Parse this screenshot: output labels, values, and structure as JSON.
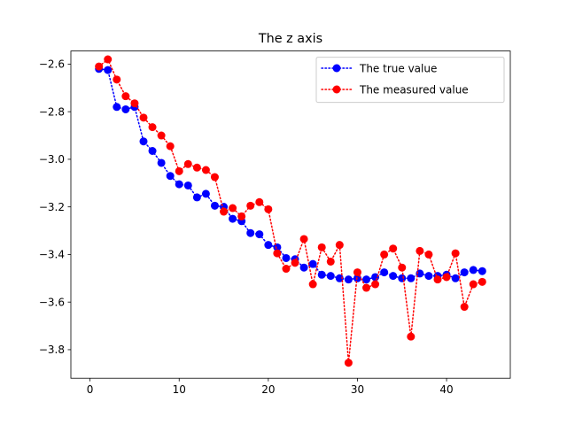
{
  "chart_data": {
    "type": "line",
    "title": "The z axis",
    "xlabel": "",
    "ylabel": "",
    "xlim": [
      -2.15,
      47.15
    ],
    "ylim": [
      -3.92,
      -2.545
    ],
    "xticks": [
      0,
      10,
      20,
      30,
      40
    ],
    "yticks": [
      -3.8,
      -3.6,
      -3.4,
      -3.2,
      -3.0,
      -2.8,
      -2.6
    ],
    "ytick_labels": [
      "−3.8",
      "−3.6",
      "−3.4",
      "−3.2",
      "−3.0",
      "−2.8",
      "−2.6"
    ],
    "grid": false,
    "legend_position": "top-right",
    "x": [
      1,
      2,
      3,
      4,
      5,
      6,
      7,
      8,
      9,
      10,
      11,
      12,
      13,
      14,
      15,
      16,
      17,
      18,
      19,
      20,
      21,
      22,
      23,
      24,
      25,
      26,
      27,
      28,
      29,
      30,
      31,
      32,
      33,
      34,
      35,
      36,
      37,
      38,
      39,
      40,
      41,
      42,
      43,
      44
    ],
    "series": [
      {
        "name": "The true value",
        "color": "#0000ff",
        "style": "dotted-line-circle-markers",
        "values": [
          -2.62,
          -2.625,
          -2.78,
          -2.79,
          -2.78,
          -2.925,
          -2.965,
          -3.015,
          -3.07,
          -3.105,
          -3.11,
          -3.16,
          -3.145,
          -3.195,
          -3.2,
          -3.25,
          -3.26,
          -3.31,
          -3.315,
          -3.36,
          -3.37,
          -3.415,
          -3.42,
          -3.455,
          -3.44,
          -3.485,
          -3.49,
          -3.5,
          -3.505,
          -3.5,
          -3.505,
          -3.495,
          -3.475,
          -3.49,
          -3.5,
          -3.5,
          -3.48,
          -3.49,
          -3.49,
          -3.485,
          -3.5,
          -3.475,
          -3.465,
          -3.47
        ]
      },
      {
        "name": "The measured value",
        "color": "#ff0000",
        "style": "dotted-line-circle-markers",
        "values": [
          -2.61,
          -2.58,
          -2.665,
          -2.735,
          -2.765,
          -2.825,
          -2.865,
          -2.9,
          -2.945,
          -3.05,
          -3.02,
          -3.035,
          -3.045,
          -3.075,
          -3.22,
          -3.205,
          -3.24,
          -3.195,
          -3.18,
          -3.21,
          -3.395,
          -3.46,
          -3.435,
          -3.335,
          -3.525,
          -3.37,
          -3.43,
          -3.36,
          -3.855,
          -3.475,
          -3.54,
          -3.525,
          -3.4,
          -3.375,
          -3.455,
          -3.745,
          -3.385,
          -3.4,
          -3.505,
          -3.495,
          -3.395,
          -3.62,
          -3.525,
          -3.515
        ]
      }
    ]
  }
}
